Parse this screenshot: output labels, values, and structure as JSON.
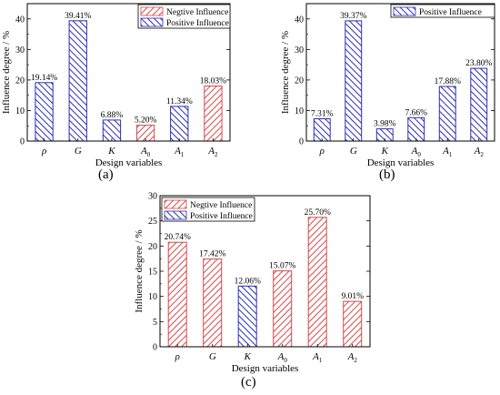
{
  "colors": {
    "positive": "#2b2fb8",
    "negative": "#d94848",
    "axis": "#000000"
  },
  "chart_data": [
    {
      "panel": "(a)",
      "type": "bar",
      "categories": [
        "ρ",
        "G",
        "K",
        "A0",
        "A1",
        "A2"
      ],
      "category_labels": [
        {
          "base": "ρ",
          "sub": ""
        },
        {
          "base": "G",
          "sub": ""
        },
        {
          "base": "K",
          "sub": ""
        },
        {
          "base": "A",
          "sub": "0"
        },
        {
          "base": "A",
          "sub": "1"
        },
        {
          "base": "A",
          "sub": "2"
        }
      ],
      "values": [
        19.14,
        39.41,
        6.88,
        5.2,
        11.34,
        18.03
      ],
      "value_labels": [
        "19.14%",
        "39.41%",
        "6.88%",
        "5.20%",
        "11.34%",
        "18.03%"
      ],
      "influence": [
        "positive",
        "positive",
        "positive",
        "negative",
        "positive",
        "negative"
      ],
      "legend": [
        {
          "name": "Negtive Influence",
          "kind": "negative"
        },
        {
          "name": "Positive Influence",
          "kind": "positive"
        }
      ],
      "xlabel": "Design variables",
      "ylabel": "Influence degree / %",
      "ylim": [
        0,
        45
      ],
      "yticks": [
        0,
        10,
        20,
        30,
        40
      ],
      "ytick_labels": [
        "0",
        "10",
        "20",
        "30",
        "40"
      ],
      "grid": false,
      "legend_position": "top-right"
    },
    {
      "panel": "(b)",
      "type": "bar",
      "categories": [
        "ρ",
        "G",
        "K",
        "A0",
        "A1",
        "A2"
      ],
      "category_labels": [
        {
          "base": "ρ",
          "sub": ""
        },
        {
          "base": "G",
          "sub": ""
        },
        {
          "base": "K",
          "sub": ""
        },
        {
          "base": "A",
          "sub": "0"
        },
        {
          "base": "A",
          "sub": "1"
        },
        {
          "base": "A",
          "sub": "2"
        }
      ],
      "values": [
        7.31,
        39.37,
        3.98,
        7.66,
        17.88,
        23.8
      ],
      "value_labels": [
        "7.31%",
        "39.37%",
        "3.98%",
        "7.66%",
        "17.88%",
        "23.80%"
      ],
      "influence": [
        "positive",
        "positive",
        "positive",
        "positive",
        "positive",
        "positive"
      ],
      "legend": [
        {
          "name": "Positive Influence",
          "kind": "positive"
        }
      ],
      "xlabel": "Design variables",
      "ylabel": "Influence degree / %",
      "ylim": [
        0,
        45
      ],
      "yticks": [
        0,
        10,
        20,
        30,
        40
      ],
      "ytick_labels": [
        "0",
        "10",
        "20",
        "30",
        "40"
      ],
      "grid": false,
      "legend_position": "top-right"
    },
    {
      "panel": "(c)",
      "type": "bar",
      "categories": [
        "ρ",
        "G",
        "K",
        "A0",
        "A1",
        "A2"
      ],
      "category_labels": [
        {
          "base": "ρ",
          "sub": ""
        },
        {
          "base": "G",
          "sub": ""
        },
        {
          "base": "K",
          "sub": ""
        },
        {
          "base": "A",
          "sub": "0"
        },
        {
          "base": "A",
          "sub": "1"
        },
        {
          "base": "A",
          "sub": "2"
        }
      ],
      "values": [
        20.74,
        17.42,
        12.06,
        15.07,
        25.7,
        9.01
      ],
      "value_labels": [
        "20.74%",
        "17.42%",
        "12.06%",
        "15.07%",
        "25.70%",
        "9.01%"
      ],
      "influence": [
        "negative",
        "negative",
        "positive",
        "negative",
        "negative",
        "negative"
      ],
      "legend": [
        {
          "name": "Negtive Influence",
          "kind": "negative"
        },
        {
          "name": "Positive Influence",
          "kind": "positive"
        }
      ],
      "xlabel": "Design variables",
      "ylabel": "Influence degree / %",
      "ylim": [
        0,
        30
      ],
      "yticks": [
        0,
        5,
        10,
        15,
        20,
        25,
        30
      ],
      "ytick_labels": [
        "0",
        "5",
        "10",
        "15",
        "20",
        "25",
        "30"
      ],
      "grid": false,
      "legend_position": "top-left"
    }
  ]
}
